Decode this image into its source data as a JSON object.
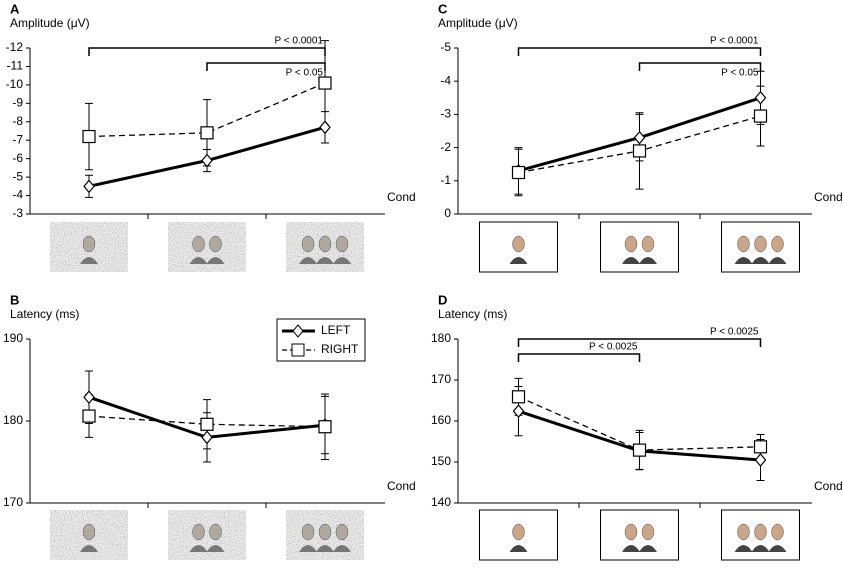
{
  "chart_data": [
    {
      "type": "line",
      "panel": "A",
      "ylabel": "Amplitude (μV)",
      "xlabel": "Cond",
      "categories": [
        null,
        null,
        null
      ],
      "thumbnail": "noise",
      "ylim": [
        -3,
        -12
      ],
      "yticks": [
        -3,
        -4,
        -5,
        -6,
        -7,
        -8,
        -9,
        -10,
        -11,
        -12
      ],
      "series": [
        {
          "color": "#000000",
          "marker": "diamond",
          "dashed": false,
          "values": [
            -4.5,
            -5.9,
            -7.7
          ],
          "errors": [
            0.6,
            0.6,
            0.85
          ]
        },
        {
          "color": "#000000",
          "marker": "square",
          "dashed": true,
          "values": [
            -7.2,
            -7.4,
            -10.1
          ],
          "errors": [
            1.8,
            1.8,
            2.3
          ]
        }
      ],
      "annotations": [
        {
          "text": "P < 0.0001",
          "from": 0,
          "to": 2
        },
        {
          "text": "P < 0.05",
          "from": 1,
          "to": 2
        }
      ]
    },
    {
      "type": "line",
      "panel": "B",
      "ylabel": "Latency (ms)",
      "xlabel": "Cond",
      "categories": [
        null,
        null,
        null
      ],
      "thumbnail": "noise",
      "ylim": [
        170,
        190
      ],
      "yticks": [
        170,
        180,
        190
      ],
      "legend": "top-right",
      "series": [
        {
          "name": "LEFT",
          "color": "#000000",
          "marker": "diamond",
          "dashed": false,
          "values": [
            182.9,
            178.0,
            179.5
          ],
          "errors": [
            3.2,
            3.0,
            3.5
          ]
        },
        {
          "name": "RIGHT",
          "color": "#000000",
          "marker": "square",
          "dashed": true,
          "values": [
            180.6,
            179.6,
            179.3
          ],
          "errors": [
            2.6,
            3.0,
            4.0
          ]
        }
      ],
      "annotations": []
    },
    {
      "type": "line",
      "panel": "C",
      "ylabel": "Amplitude (μV)",
      "xlabel": "Cond",
      "categories": [
        null,
        null,
        null
      ],
      "thumbnail": "plain",
      "ylim": [
        0,
        -5
      ],
      "yticks": [
        0,
        -1,
        -2,
        -3,
        -4,
        -5
      ],
      "series": [
        {
          "color": "#000000",
          "marker": "diamond",
          "dashed": false,
          "values": [
            -1.3,
            -2.3,
            -3.5
          ],
          "errors": [
            0.7,
            0.7,
            0.8
          ]
        },
        {
          "color": "#000000",
          "marker": "square",
          "dashed": true,
          "values": [
            -1.25,
            -1.9,
            -2.95
          ],
          "errors": [
            0.7,
            1.15,
            0.9
          ]
        }
      ],
      "annotations": [
        {
          "text": "P < 0.0001",
          "from": 0,
          "to": 2
        },
        {
          "text": "P < 0.05",
          "from": 1,
          "to": 2
        }
      ]
    },
    {
      "type": "line",
      "panel": "D",
      "ylabel": "Latency (ms)",
      "xlabel": "Cond",
      "categories": [
        null,
        null,
        null
      ],
      "thumbnail": "plain",
      "ylim": [
        140,
        180
      ],
      "yticks": [
        140,
        150,
        160,
        170,
        180
      ],
      "series": [
        {
          "color": "#000000",
          "marker": "diamond",
          "dashed": false,
          "values": [
            162.4,
            152.7,
            150.5
          ],
          "errors": [
            6.0,
            4.5,
            5.0
          ]
        },
        {
          "color": "#000000",
          "marker": "square",
          "dashed": true,
          "values": [
            165.9,
            152.9,
            153.7
          ],
          "errors": [
            4.5,
            4.8,
            3.0
          ]
        }
      ],
      "annotations": [
        {
          "text": "P < 0.0025",
          "from": 0,
          "to": 2
        },
        {
          "text": "P < 0.0025",
          "from": 0,
          "to": 1
        }
      ]
    }
  ]
}
